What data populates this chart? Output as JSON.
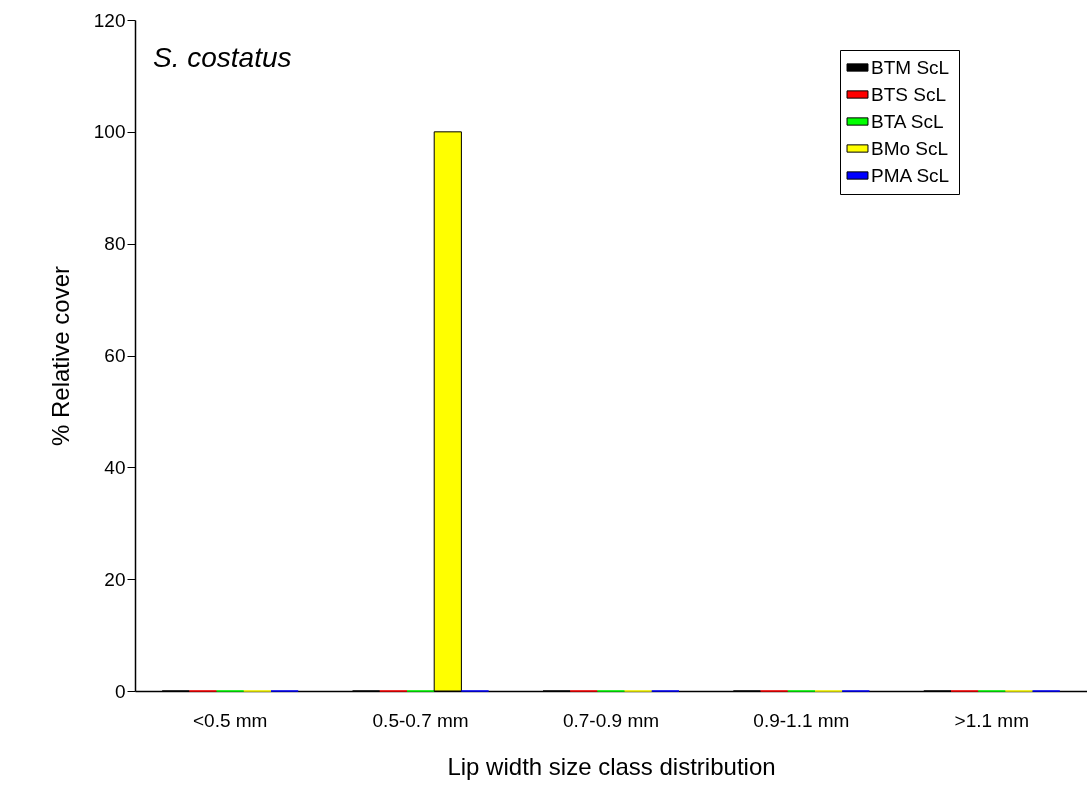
{
  "chart_data": {
    "type": "bar",
    "title": "S. costatus",
    "xlabel": "Lip width size class distribution",
    "ylabel": "% Relative cover",
    "categories": [
      "<0.5 mm",
      "0.5-0.7 mm",
      "0.7-0.9 mm",
      "0.9-1.1 mm",
      ">1.1 mm"
    ],
    "series": [
      {
        "name": "BTM ScL",
        "color": "#000000",
        "values": [
          0,
          0,
          0,
          0,
          0
        ]
      },
      {
        "name": "BTS ScL",
        "color": "#ff0000",
        "values": [
          0,
          0,
          0,
          0,
          0
        ]
      },
      {
        "name": "BTA ScL",
        "color": "#00ff00",
        "values": [
          0,
          0,
          0,
          0,
          0
        ]
      },
      {
        "name": "BMo ScL",
        "color": "#ffff00",
        "values": [
          0,
          100,
          0,
          0,
          0
        ]
      },
      {
        "name": "PMA ScL",
        "color": "#0000ff",
        "values": [
          0,
          0,
          0,
          0,
          0
        ]
      }
    ],
    "ylim": [
      0,
      120
    ],
    "yticks": [
      0,
      20,
      40,
      60,
      80,
      100,
      120
    ],
    "grid": false,
    "legend": "top right"
  }
}
